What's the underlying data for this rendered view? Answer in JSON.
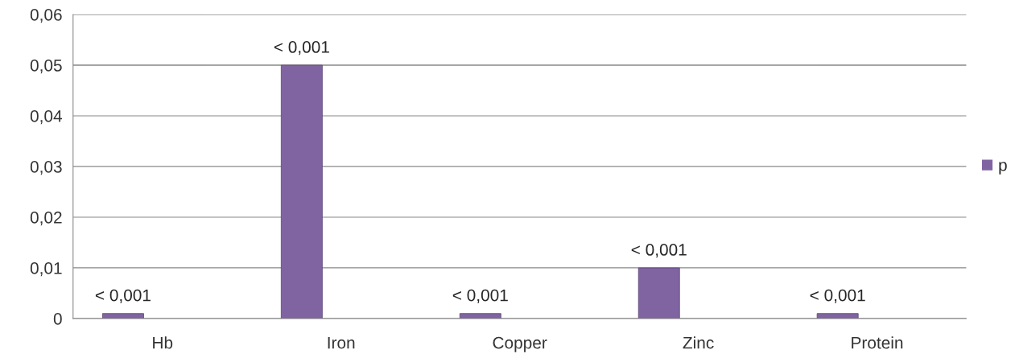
{
  "chart_data": {
    "type": "bar",
    "categories": [
      "Hb",
      "Iron",
      "Copper",
      "Zinc",
      "Protein"
    ],
    "series": [
      {
        "name": "p",
        "color": "#8064a2",
        "values": [
          0.001,
          0.05,
          0.001,
          0.01,
          0.001
        ],
        "value_labels": [
          "< 0,001",
          "< 0,001",
          "< 0,001",
          "< 0,001",
          "< 0,001"
        ]
      }
    ],
    "ylim": [
      0,
      0.06
    ],
    "yticks": [
      0,
      {
        "value": 0.01,
        "label": "0,01"
      },
      {
        "value": 0.02,
        "label": "0,02"
      },
      {
        "value": 0.03,
        "label": "0,03"
      },
      {
        "value": 0.04,
        "label": "0,04"
      },
      {
        "value": 0.05,
        "label": "0,05"
      },
      {
        "value": 0.06,
        "label": "0,06"
      }
    ],
    "grid": "y",
    "legend": "right"
  }
}
